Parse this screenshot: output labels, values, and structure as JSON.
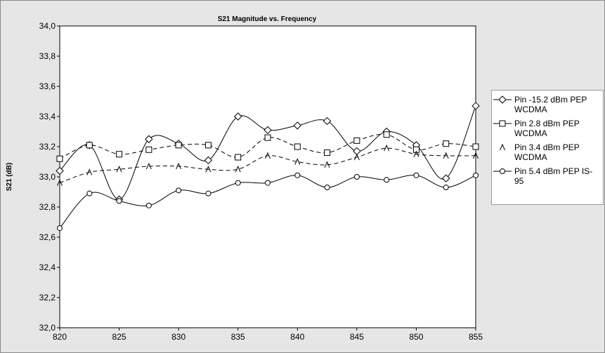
{
  "chart_data": {
    "type": "line",
    "title": "S21 Magnitude vs. Frequency",
    "ylabel": "S21 (dB)",
    "x": [
      820,
      822.5,
      825,
      827.5,
      830,
      832.5,
      835,
      837.5,
      840,
      842.5,
      845,
      847.5,
      850,
      852.5,
      855
    ],
    "xlim": [
      820,
      855
    ],
    "xticks": [
      820,
      825,
      830,
      835,
      840,
      845,
      850,
      855
    ],
    "ylim": [
      32.0,
      34.0
    ],
    "yticks": [
      {
        "value": 32.0,
        "label": "32,0"
      },
      {
        "value": 32.2,
        "label": "32,2"
      },
      {
        "value": 32.4,
        "label": "32,4"
      },
      {
        "value": 32.6,
        "label": "32,6"
      },
      {
        "value": 32.8,
        "label": "32,8"
      },
      {
        "value": 33.0,
        "label": "33,0"
      },
      {
        "value": 33.2,
        "label": "33,2"
      },
      {
        "value": 33.4,
        "label": "33,4"
      },
      {
        "value": 33.6,
        "label": "33,6"
      },
      {
        "value": 33.8,
        "label": "33,8"
      },
      {
        "value": 34.0,
        "label": "34,0"
      }
    ],
    "series": [
      {
        "name": "Pin -15.2 dBm PEP WCDMA",
        "color": "#000000",
        "marker": "diamond",
        "values": [
          33.04,
          33.21,
          32.85,
          33.25,
          33.22,
          33.11,
          33.4,
          33.31,
          33.34,
          33.37,
          33.17,
          33.3,
          33.21,
          32.99,
          33.47
        ]
      },
      {
        "name": "Pin 2.8 dBm PEP WCDMA",
        "color": "#000000",
        "marker": "square",
        "values": [
          33.12,
          33.21,
          33.15,
          33.18,
          33.21,
          33.21,
          33.13,
          33.26,
          33.2,
          33.16,
          33.24,
          33.28,
          33.18,
          33.22,
          33.2
        ]
      },
      {
        "name": "Pin 3.4 dBm PEP WCDMA",
        "color": "#000000",
        "marker": "triangle",
        "values": [
          32.96,
          33.03,
          33.05,
          33.07,
          33.07,
          33.05,
          33.05,
          33.14,
          33.1,
          33.08,
          33.13,
          33.19,
          33.15,
          33.14,
          33.14
        ]
      },
      {
        "name": "Pin 5.4 dBm PEP IS-95",
        "color": "#000000",
        "marker": "circle",
        "values": [
          32.66,
          32.89,
          32.84,
          32.81,
          32.91,
          32.89,
          32.96,
          32.96,
          33.01,
          32.93,
          33.0,
          32.98,
          33.01,
          32.93,
          33.01
        ]
      }
    ]
  }
}
